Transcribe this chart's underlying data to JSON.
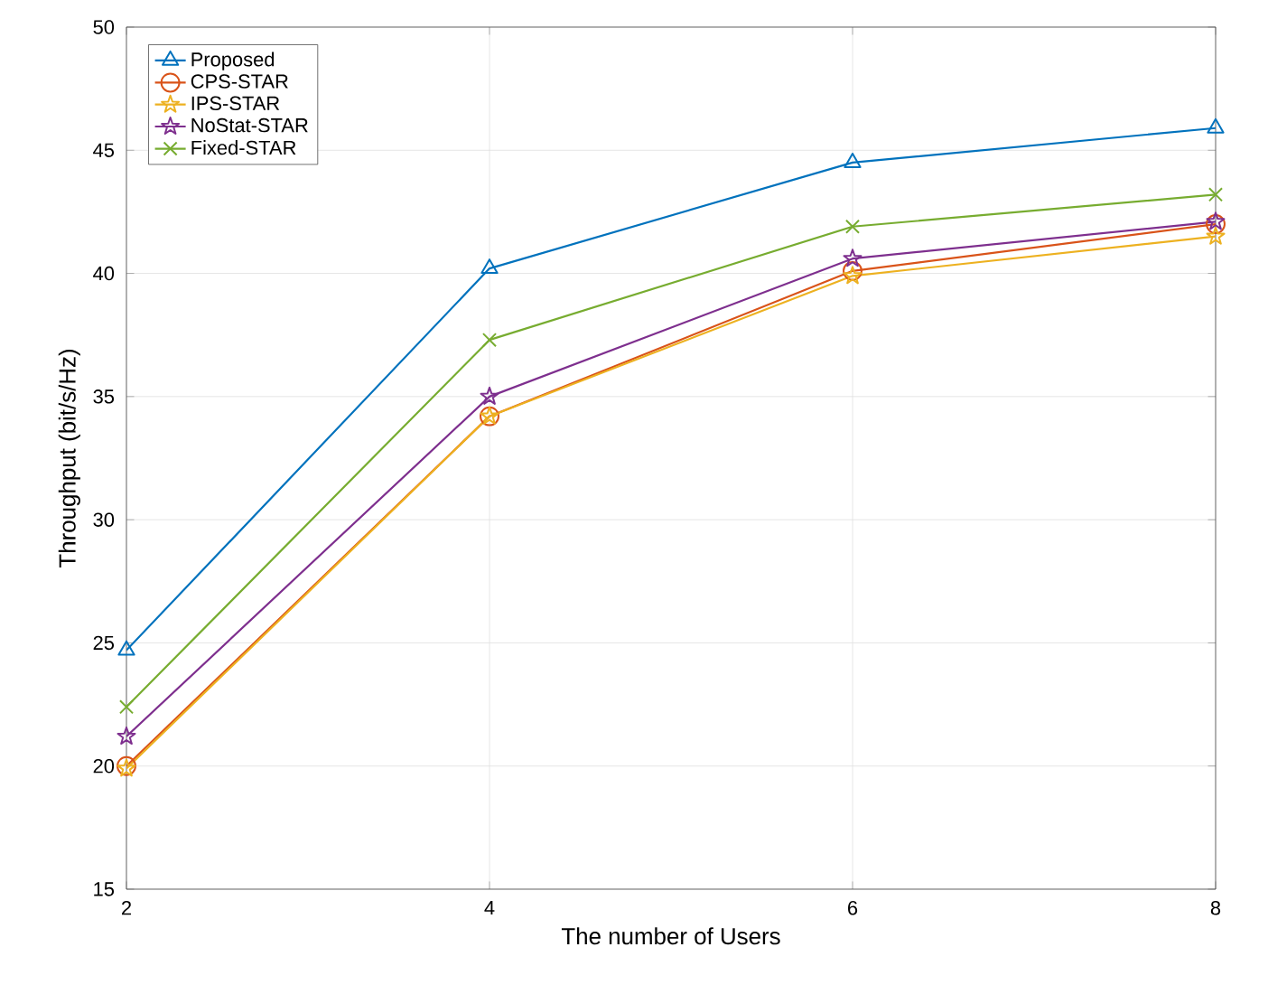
{
  "chart_data": {
    "type": "line",
    "xlabel": "The number of Users",
    "ylabel": "Throughput (bit/s/Hz)",
    "x": [
      2,
      4,
      6,
      8
    ],
    "xlim": [
      2,
      8
    ],
    "xticks": [
      2,
      4,
      6,
      8
    ],
    "ylim": [
      15,
      50
    ],
    "yticks": [
      15,
      20,
      25,
      30,
      35,
      40,
      45,
      50
    ],
    "grid": true,
    "legend": "top left",
    "line_style": "solid",
    "series": [
      {
        "name": "Proposed",
        "color": "#0072bd",
        "marker": "triangle",
        "values": [
          24.7,
          40.2,
          44.5,
          45.9
        ]
      },
      {
        "name": "CPS-STAR",
        "color": "#d95319",
        "marker": "circle",
        "values": [
          20.0,
          34.2,
          40.1,
          42.0
        ]
      },
      {
        "name": "IPS-STAR",
        "color": "#edb120",
        "marker": "star",
        "values": [
          19.9,
          34.2,
          39.9,
          41.5
        ]
      },
      {
        "name": "NoStat-STAR",
        "color": "#7e2f8e",
        "marker": "star",
        "values": [
          21.2,
          35.0,
          40.6,
          42.1
        ]
      },
      {
        "name": "Fixed-STAR",
        "color": "#77ac30",
        "marker": "cross",
        "values": [
          22.4,
          37.3,
          41.9,
          43.2
        ]
      }
    ]
  }
}
